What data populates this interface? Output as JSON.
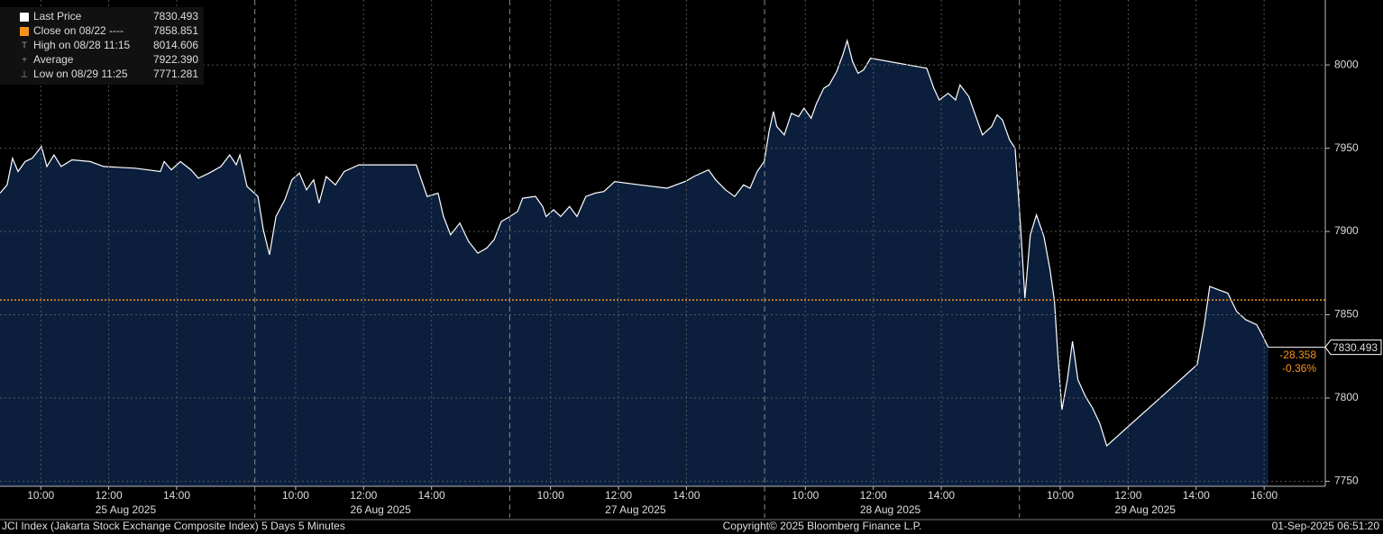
{
  "chart_data": {
    "type": "area",
    "title": "JCI Index (Jakarta Stock Exchange Composite Index) 5 Days 5 Minutes",
    "copyright": "Copyright© 2025 Bloomberg Finance L.P.",
    "timestamp": "01-Sep-2025 06:51:20",
    "x": [
      0,
      0.21,
      0.37,
      0.53,
      0.74,
      0.95,
      1.22,
      1.38,
      1.59,
      1.8,
      2.12,
      2.65,
      3.05,
      3.98,
      4.72,
      4.83,
      5.04,
      5.31,
      5.62,
      5.84,
      6.15,
      6.5,
      6.76,
      6.95,
      7.06,
      7.27,
      7.59,
      7.75,
      7.93,
      8.12,
      8.38,
      8.59,
      8.81,
      9.02,
      9.23,
      9.39,
      9.6,
      9.87,
      10.13,
      10.56,
      11.67,
      12.25,
      12.57,
      12.89,
      13.05,
      13.26,
      13.53,
      13.79,
      14.06,
      14.32,
      14.54,
      14.75,
      15.01,
      15.23,
      15.38,
      15.76,
      15.97,
      16.07,
      16.29,
      16.5,
      16.76,
      16.98,
      17.24,
      17.51,
      17.77,
      18.09,
      18.83,
      19.63,
      20.16,
      20.42,
      20.85,
      21.06,
      21.35,
      21.62,
      21.88,
      22.07,
      22.28,
      22.49,
      22.63,
      22.76,
      22.86,
      23.08,
      23.29,
      23.5,
      23.66,
      23.87,
      24.03,
      24.24,
      24.4,
      24.62,
      24.8,
      24.93,
      25.09,
      25.25,
      25.41,
      25.62,
      27.27,
      27.48,
      27.64,
      27.9,
      28.12,
      28.25,
      28.51,
      28.7,
      28.91,
      29.18,
      29.34,
      29.5,
      29.71,
      29.87,
      30.03,
      30.16,
      30.32,
      30.5,
      30.72,
      30.9,
      31.03,
      31.14,
      31.25,
      31.41,
      31.56,
      31.72,
      31.94,
      32.15,
      32.36,
      32.57,
      35.23,
      35.44,
      35.6,
      35.86,
      36.13,
      36.39,
      36.66,
      36.98,
      37.14,
      37.32
    ],
    "series": [
      {
        "name": "Last Price",
        "color": "#ffffff",
        "fill": "#0b1f3d",
        "values": [
          7923,
          7928,
          7944,
          7936,
          7942,
          7944,
          7951,
          7939,
          7946,
          7939,
          7943,
          7942,
          7939,
          7938,
          7936,
          7942,
          7937,
          7942,
          7937,
          7932,
          7935,
          7939,
          7946,
          7940,
          7946,
          7927,
          7921,
          7901,
          7886,
          7909,
          7919,
          7931,
          7935,
          7925,
          7931,
          7917,
          7933,
          7928,
          7936,
          7940,
          7940,
          7940,
          7921,
          7923,
          7909,
          7898,
          7905,
          7894,
          7887,
          7890,
          7895,
          7906,
          7909,
          7912,
          7920,
          7921,
          7915,
          7909,
          7913,
          7909,
          7915,
          7909,
          7921,
          7923,
          7924,
          7930,
          7928,
          7926,
          7930,
          7933,
          7937,
          7931,
          7925,
          7921,
          7928,
          7926,
          7936,
          7942,
          7960,
          7972,
          7963,
          7958,
          7971,
          7969,
          7974,
          7968,
          7977,
          7986,
          7988,
          7996,
          8006,
          8014.606,
          8002,
          7995,
          7997,
          8004,
          7998,
          7986,
          7979,
          7983,
          7979,
          7988,
          7981,
          7970,
          7958,
          7963,
          7970,
          7967,
          7955,
          7950,
          7904,
          7860,
          7898,
          7910,
          7897,
          7877,
          7858,
          7823,
          7793,
          7811,
          7834,
          7811,
          7801,
          7794,
          7785,
          7771.281,
          7820,
          7844,
          7867,
          7865,
          7863,
          7852,
          7847,
          7844,
          7838,
          7830.493
        ]
      }
    ],
    "reference_line": {
      "value": 7858.851,
      "color": "#f7941d"
    },
    "last_price_label": "7830.493",
    "change": "-28.358",
    "change_pct": "-0.36%",
    "legend": [
      {
        "name": "Last Price",
        "value": "7830.493"
      },
      {
        "name": "Close on 08/22 ----",
        "value": "7858.851"
      },
      {
        "name": "High on 08/28 11:15",
        "value": "8014.606"
      },
      {
        "name": "Average",
        "value": "7922.390"
      },
      {
        "name": "Low on 08/29 11:25",
        "value": "7771.281"
      }
    ],
    "xlim": [
      0,
      39
    ],
    "ylim": [
      7747,
      8039
    ],
    "yticks": [
      7750,
      7800,
      7850,
      7900,
      7950,
      8000
    ],
    "xticks": [
      {
        "value": 1.2,
        "label": "10:00"
      },
      {
        "value": 3.2,
        "label": "12:00"
      },
      {
        "value": 5.2,
        "label": "14:00"
      },
      {
        "value": 8.7,
        "label": "10:00"
      },
      {
        "value": 10.7,
        "label": "12:00"
      },
      {
        "value": 12.7,
        "label": "14:00"
      },
      {
        "value": 16.2,
        "label": "10:00"
      },
      {
        "value": 18.2,
        "label": "12:00"
      },
      {
        "value": 20.2,
        "label": "14:00"
      },
      {
        "value": 23.7,
        "label": "10:00"
      },
      {
        "value": 25.7,
        "label": "12:00"
      },
      {
        "value": 27.7,
        "label": "14:00"
      },
      {
        "value": 31.2,
        "label": "10:00"
      },
      {
        "value": 33.2,
        "label": "12:00"
      },
      {
        "value": 35.2,
        "label": "14:00"
      },
      {
        "value": 37.2,
        "label": "16:00"
      }
    ],
    "day_labels": [
      {
        "value": 3.7,
        "label": "25 Aug 2025"
      },
      {
        "value": 11.2,
        "label": "26 Aug 2025"
      },
      {
        "value": 18.7,
        "label": "27 Aug 2025"
      },
      {
        "value": 26.2,
        "label": "28 Aug 2025"
      },
      {
        "value": 33.7,
        "label": "29 Aug 2025"
      }
    ],
    "day_breaks": [
      7.5,
      15,
      22.5,
      30
    ],
    "grid": true
  }
}
